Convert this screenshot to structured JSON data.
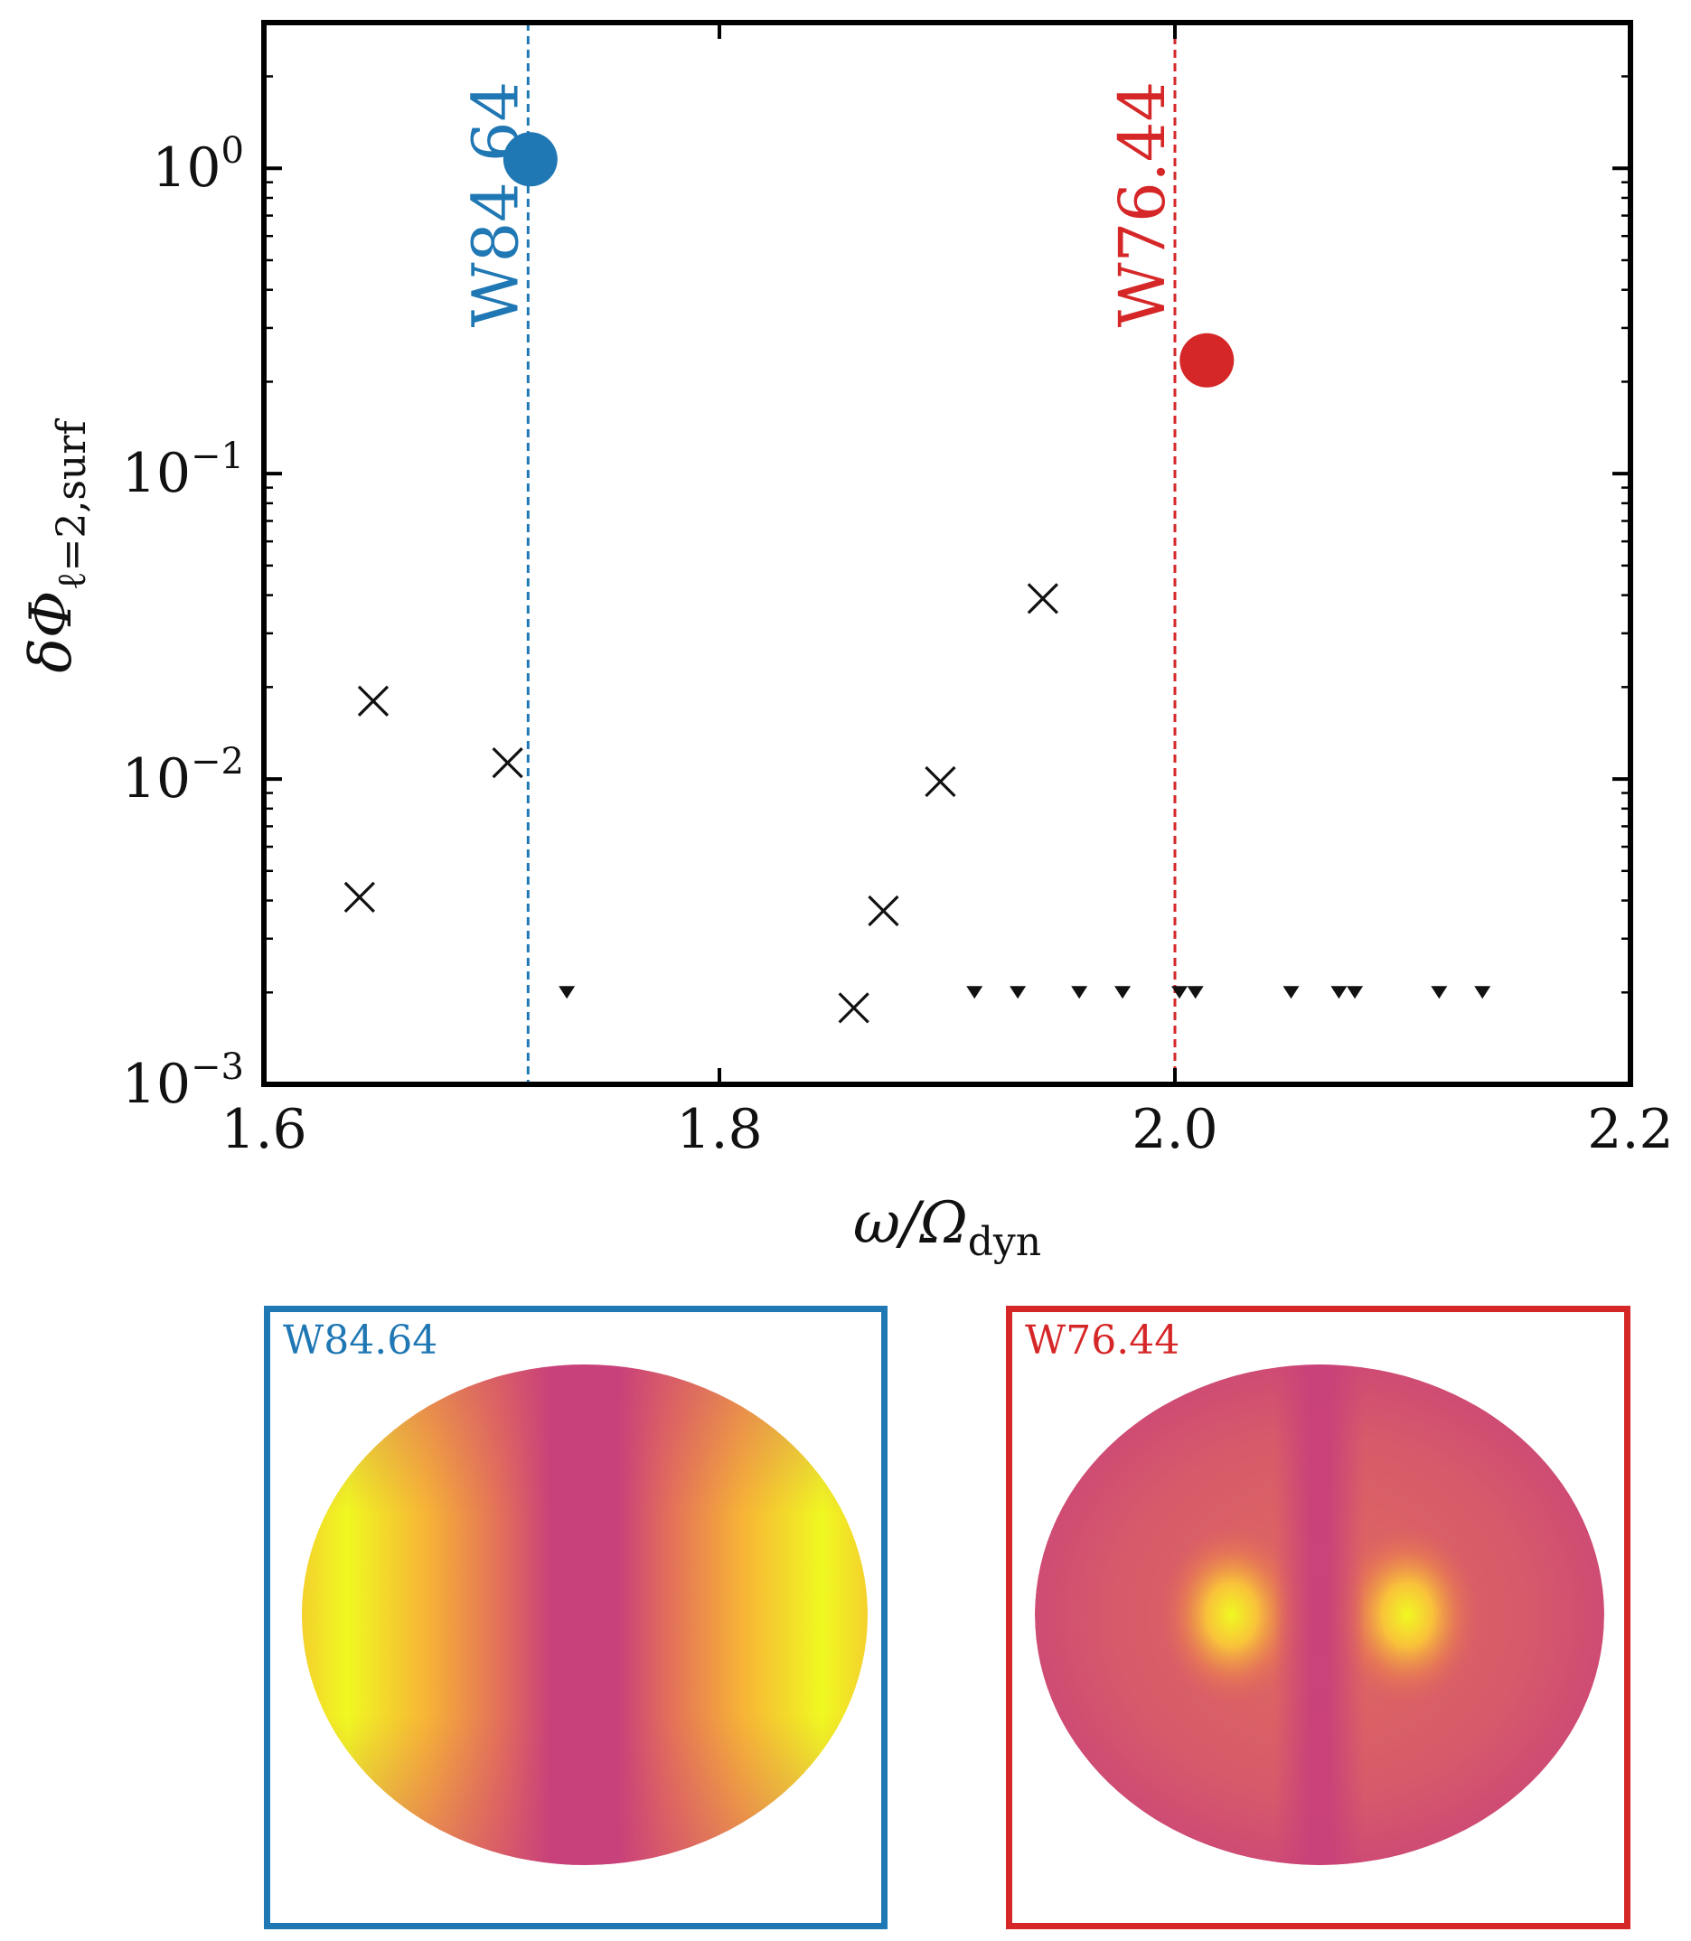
{
  "chart_data": {
    "type": "scatter",
    "xlabel": "ω/Ω_dyn",
    "ylabel": "δΦ_ℓ=2,surf",
    "x_scale": "linear",
    "y_scale": "log",
    "xlim": [
      1.6,
      2.2
    ],
    "ylim": [
      0.001,
      3.0
    ],
    "x_ticks": [
      1.6,
      1.8,
      2.0,
      2.2
    ],
    "x_tick_labels": [
      "1.6",
      "1.8",
      "2.0",
      "2.2"
    ],
    "y_ticks": [
      0.001,
      0.01,
      0.1,
      1
    ],
    "y_tick_labels": [
      {
        "base": "10",
        "exp": "−3"
      },
      {
        "base": "10",
        "exp": "−2"
      },
      {
        "base": "10",
        "exp": "−1"
      },
      {
        "base": "10",
        "exp": "0"
      }
    ],
    "grid": false,
    "series": [
      {
        "marker": "x",
        "color": "#111111",
        "points": [
          {
            "x": 1.642,
            "y": 0.0041
          },
          {
            "x": 1.648,
            "y": 0.018
          },
          {
            "x": 1.707,
            "y": 0.0113
          },
          {
            "x": 1.859,
            "y": 0.00178
          },
          {
            "x": 1.872,
            "y": 0.0037
          },
          {
            "x": 1.897,
            "y": 0.0098
          },
          {
            "x": 1.942,
            "y": 0.039
          }
        ]
      },
      {
        "marker": "triangle-down",
        "color": "#111111",
        "note_type": "upper limits",
        "points": [
          {
            "x": 1.733,
            "y": 0.002
          },
          {
            "x": 1.912,
            "y": 0.002
          },
          {
            "x": 1.931,
            "y": 0.002
          },
          {
            "x": 1.958,
            "y": 0.002
          },
          {
            "x": 1.977,
            "y": 0.002
          },
          {
            "x": 2.002,
            "y": 0.002
          },
          {
            "x": 2.009,
            "y": 0.002
          },
          {
            "x": 2.051,
            "y": 0.002
          },
          {
            "x": 2.072,
            "y": 0.002
          },
          {
            "x": 2.079,
            "y": 0.002
          },
          {
            "x": 2.116,
            "y": 0.002
          },
          {
            "x": 2.135,
            "y": 0.002
          }
        ]
      },
      {
        "marker": "circle",
        "color": "#1f77b4",
        "points": [
          {
            "x": 1.717,
            "y": 1.07
          }
        ]
      },
      {
        "marker": "circle",
        "color": "#d62728",
        "points": [
          {
            "x": 2.014,
            "y": 0.235
          }
        ]
      }
    ],
    "vertical_lines": [
      {
        "x": 1.716,
        "label": "W84.64",
        "color": "#1f77b4"
      },
      {
        "x": 2.0,
        "label": "W76.44",
        "color": "#d62728"
      }
    ]
  },
  "insets": [
    {
      "label": "W84.64",
      "color": "#1f77b4",
      "pattern": "two-lobe-side"
    },
    {
      "label": "W76.44",
      "color": "#d62728",
      "pattern": "two-lobe-center"
    }
  ],
  "colormap": {
    "low": "#c9417a",
    "mid": "#f08a4b",
    "high": "#f0f921"
  }
}
